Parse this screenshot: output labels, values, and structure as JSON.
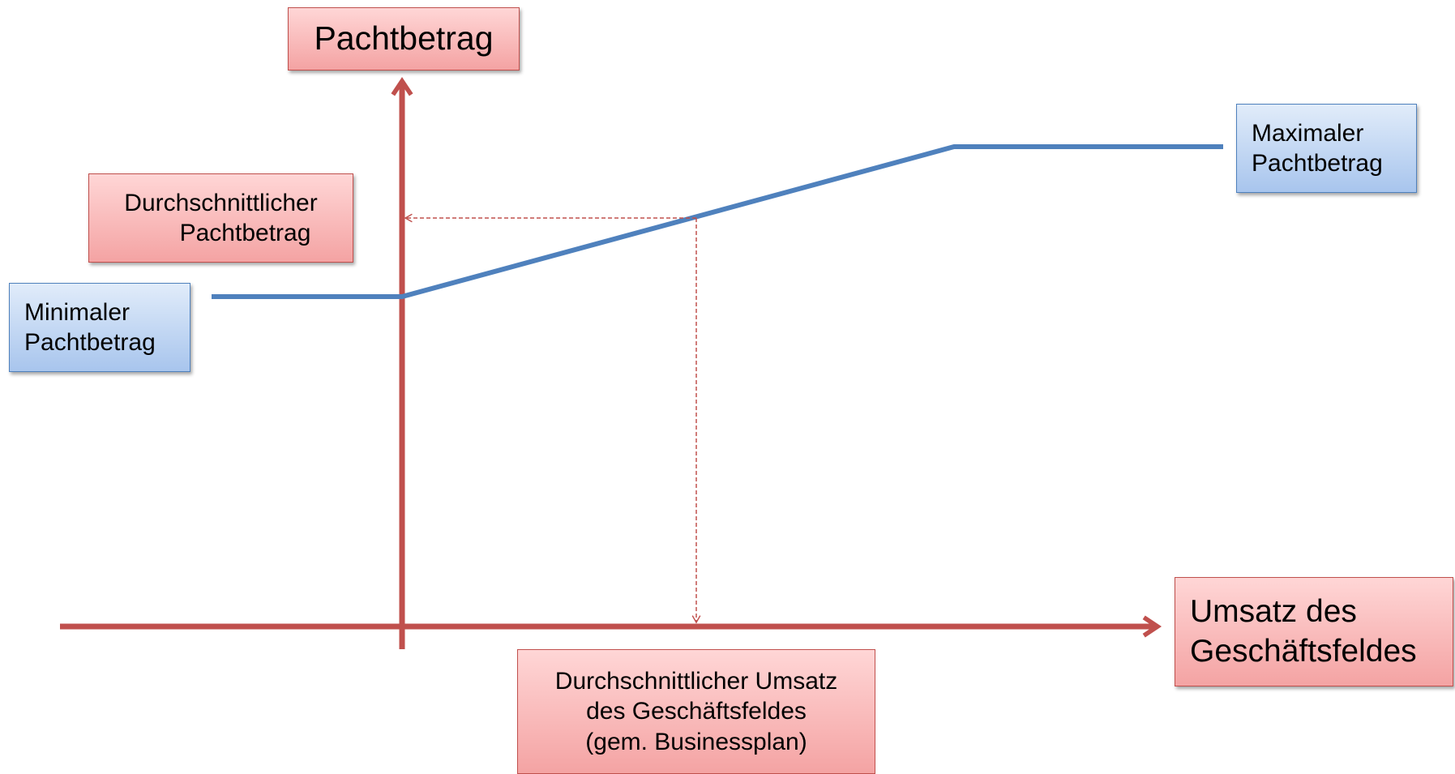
{
  "y_axis_label": "Pachtbetrag",
  "x_axis_label": [
    "Umsatz des",
    "Geschäftsfeldes"
  ],
  "average_rent": [
    "Durchschnittlicher",
    "Pachtbetrag"
  ],
  "minimum_rent": [
    "Minimaler",
    "Pachtbetrag"
  ],
  "maximum_rent": [
    "Maximaler",
    "Pachtbetrag"
  ],
  "average_revenue": [
    "Durchschnittlicher Umsatz",
    "des Geschäftsfeldes",
    "(gem. Businessplan)"
  ]
}
